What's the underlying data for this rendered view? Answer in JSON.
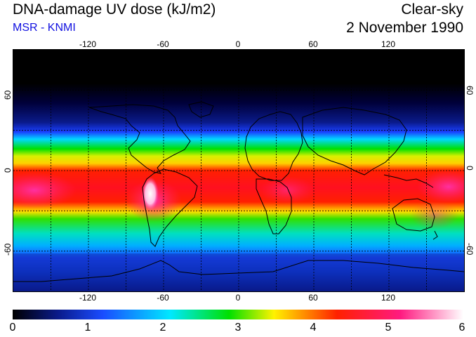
{
  "title": "DNA-damage UV dose (kJ/m2)",
  "subtitle": "MSR - KNMI",
  "sky_condition": "Clear-sky",
  "date": "2 November 1990",
  "map": {
    "projection": "equirectangular",
    "lon_range": [
      -180,
      180
    ],
    "lat_range": [
      -90,
      90
    ],
    "grid_spacing_deg": 30,
    "grid_style": "dotted",
    "lon_ticks": [
      "-120",
      "-60",
      "0",
      "60",
      "120"
    ],
    "lat_ticks": [
      "60",
      "0",
      "-60"
    ],
    "field": "DNA-damage UV dose",
    "field_units": "kJ/m2",
    "value_range": [
      0,
      6
    ],
    "max_region": "Andes / western South America (~lat -20 to -30)",
    "min_region": "Arctic (north of lat 60)"
  },
  "colorbar": {
    "ticks": [
      "0",
      "1",
      "2",
      "3",
      "4",
      "5",
      "6"
    ],
    "colors": [
      "#000000",
      "#0a1a8a",
      "#1a4cff",
      "#00e8ff",
      "#00e000",
      "#fff200",
      "#ff2000",
      "#ff1a80",
      "#ffffff"
    ]
  }
}
